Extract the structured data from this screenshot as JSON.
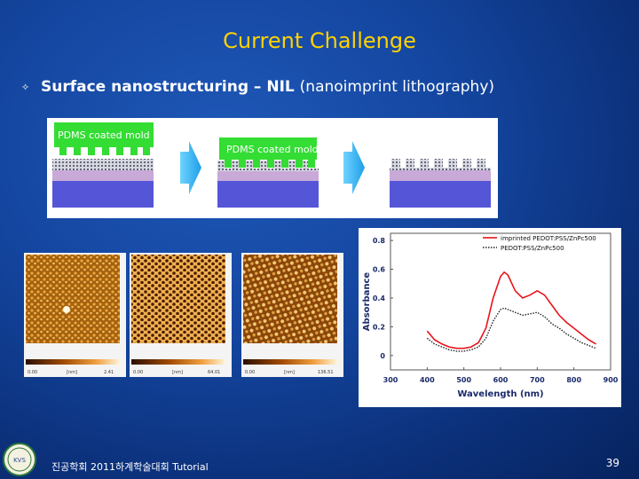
{
  "slide": {
    "title": "Current Challenge",
    "bullet_text": "Surface nanostructuring – NIL",
    "bullet_paren": "(nanoimprint lithography)",
    "footer": "진공학회 2011하계학술대회 Tutorial",
    "page_number": "39",
    "logo_text": "KVS"
  },
  "process_diagram": {
    "mold_label_1": "PDMS coated mold",
    "mold_label_2": "PDMS coated mold"
  },
  "afm_images": {
    "panel1": {
      "scale_labels": [
        "0.00",
        "[nm]",
        "2.41"
      ]
    },
    "panel2": {
      "scale_labels": [
        "0.00",
        "[nm]",
        "64.01"
      ]
    },
    "panel3": {
      "scale_labels": [
        "0.00",
        "[nm]",
        "136.51"
      ]
    }
  },
  "chart_data": {
    "type": "line",
    "title": "",
    "xlabel": "Wavelength (nm)",
    "ylabel": "Absorbance",
    "xlim": [
      300,
      900
    ],
    "ylim": [
      -0.1,
      0.85
    ],
    "xticks": [
      300,
      400,
      500,
      600,
      700,
      800,
      900
    ],
    "yticks": [
      0,
      0.2,
      0.4,
      0.6,
      0.8
    ],
    "legend_position": "top-right",
    "series": [
      {
        "name": "imprinted PEDOT:PSS/ZnPc500",
        "color": "#e8141c",
        "style": "solid",
        "x": [
          400,
          420,
          440,
          460,
          480,
          500,
          520,
          540,
          560,
          580,
          600,
          610,
          620,
          640,
          660,
          680,
          700,
          720,
          740,
          760,
          780,
          800,
          820,
          840,
          860
        ],
        "y": [
          0.17,
          0.11,
          0.08,
          0.06,
          0.05,
          0.05,
          0.06,
          0.09,
          0.19,
          0.4,
          0.55,
          0.58,
          0.56,
          0.45,
          0.4,
          0.42,
          0.45,
          0.42,
          0.35,
          0.28,
          0.23,
          0.19,
          0.15,
          0.11,
          0.08
        ]
      },
      {
        "name": "PEDOT:PSS/ZnPc500",
        "color": "#222222",
        "style": "dotted",
        "x": [
          400,
          420,
          440,
          460,
          480,
          500,
          520,
          540,
          560,
          580,
          600,
          610,
          620,
          640,
          660,
          680,
          700,
          720,
          740,
          760,
          780,
          800,
          820,
          840,
          860
        ],
        "y": [
          0.12,
          0.08,
          0.06,
          0.04,
          0.03,
          0.03,
          0.04,
          0.06,
          0.12,
          0.24,
          0.32,
          0.33,
          0.32,
          0.3,
          0.28,
          0.29,
          0.3,
          0.27,
          0.22,
          0.19,
          0.15,
          0.12,
          0.09,
          0.07,
          0.05
        ]
      }
    ]
  }
}
